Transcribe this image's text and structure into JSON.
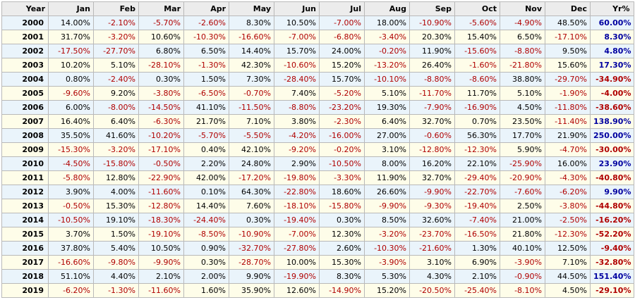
{
  "table": {
    "headers": [
      "Year",
      "Jan",
      "Feb",
      "Mar",
      "Apr",
      "May",
      "Jun",
      "Jul",
      "Aug",
      "Sep",
      "Oct",
      "Nov",
      "Dec",
      "Yr%"
    ],
    "rows": [
      {
        "year": "2000",
        "months": [
          "14.00%",
          "-2.10%",
          "-5.70%",
          "-2.60%",
          "8.30%",
          "10.50%",
          "-7.00%",
          "18.00%",
          "-10.90%",
          "-5.60%",
          "-4.90%",
          "48.50%"
        ],
        "total": "60.00%"
      },
      {
        "year": "2001",
        "months": [
          "31.70%",
          "-3.20%",
          "10.60%",
          "-10.30%",
          "-16.60%",
          "-7.00%",
          "-6.80%",
          "-3.40%",
          "20.30%",
          "15.40%",
          "6.50%",
          "-17.10%"
        ],
        "total": "8.30%"
      },
      {
        "year": "2002",
        "months": [
          "-17.50%",
          "-27.70%",
          "6.80%",
          "6.50%",
          "14.40%",
          "15.70%",
          "24.00%",
          "-0.20%",
          "11.90%",
          "-15.60%",
          "-8.80%",
          "9.50%"
        ],
        "total": "4.80%"
      },
      {
        "year": "2003",
        "months": [
          "10.20%",
          "5.10%",
          "-28.10%",
          "-1.30%",
          "42.30%",
          "-10.60%",
          "15.20%",
          "-13.20%",
          "26.40%",
          "-1.60%",
          "-21.80%",
          "15.60%"
        ],
        "total": "17.30%"
      },
      {
        "year": "2004",
        "months": [
          "0.80%",
          "-2.40%",
          "0.30%",
          "1.50%",
          "7.30%",
          "-28.40%",
          "15.70%",
          "-10.10%",
          "-8.80%",
          "-8.60%",
          "38.80%",
          "-29.70%"
        ],
        "total": "-34.90%"
      },
      {
        "year": "2005",
        "months": [
          "-9.60%",
          "9.20%",
          "-3.80%",
          "-6.50%",
          "-0.70%",
          "7.40%",
          "-5.20%",
          "5.10%",
          "-11.70%",
          "11.70%",
          "5.10%",
          "-1.90%"
        ],
        "total": "-4.00%"
      },
      {
        "year": "2006",
        "months": [
          "6.00%",
          "-8.00%",
          "-14.50%",
          "41.10%",
          "-11.50%",
          "-8.80%",
          "-23.20%",
          "19.30%",
          "-7.90%",
          "-16.90%",
          "4.50%",
          "-11.80%"
        ],
        "total": "-38.60%"
      },
      {
        "year": "2007",
        "months": [
          "16.40%",
          "6.40%",
          "-6.30%",
          "21.70%",
          "7.10%",
          "3.80%",
          "-2.30%",
          "6.40%",
          "32.70%",
          "0.70%",
          "23.50%",
          "-11.40%"
        ],
        "total": "138.90%"
      },
      {
        "year": "2008",
        "months": [
          "35.50%",
          "41.60%",
          "-10.20%",
          "-5.70%",
          "-5.50%",
          "-4.20%",
          "-16.00%",
          "27.00%",
          "-0.60%",
          "56.30%",
          "17.70%",
          "21.90%"
        ],
        "total": "250.00%"
      },
      {
        "year": "2009",
        "months": [
          "-15.30%",
          "-3.20%",
          "-17.10%",
          "0.40%",
          "42.10%",
          "-9.20%",
          "-0.20%",
          "3.10%",
          "-12.80%",
          "-12.30%",
          "5.90%",
          "-4.70%"
        ],
        "total": "-30.00%"
      },
      {
        "year": "2010",
        "months": [
          "-4.50%",
          "-15.80%",
          "-0.50%",
          "2.20%",
          "24.80%",
          "2.90%",
          "-10.50%",
          "8.00%",
          "16.20%",
          "22.10%",
          "-25.90%",
          "16.00%"
        ],
        "total": "23.90%"
      },
      {
        "year": "2011",
        "months": [
          "-5.80%",
          "12.80%",
          "-22.90%",
          "42.00%",
          "-17.20%",
          "-19.80%",
          "-3.30%",
          "11.90%",
          "32.70%",
          "-29.40%",
          "-20.90%",
          "-4.30%"
        ],
        "total": "-40.80%"
      },
      {
        "year": "2012",
        "months": [
          "3.90%",
          "4.00%",
          "-11.60%",
          "0.10%",
          "64.30%",
          "-22.80%",
          "18.60%",
          "26.60%",
          "-9.90%",
          "-22.70%",
          "-7.60%",
          "-6.20%"
        ],
        "total": "9.90%"
      },
      {
        "year": "2013",
        "months": [
          "-0.50%",
          "15.30%",
          "-12.80%",
          "14.40%",
          "7.60%",
          "-18.10%",
          "-15.80%",
          "-9.90%",
          "-9.30%",
          "-19.40%",
          "2.50%",
          "-3.80%"
        ],
        "total": "-44.80%"
      },
      {
        "year": "2014",
        "months": [
          "-10.50%",
          "19.10%",
          "-18.30%",
          "-24.40%",
          "0.30%",
          "-19.40%",
          "0.30%",
          "8.50%",
          "32.60%",
          "-7.40%",
          "21.00%",
          "-2.50%"
        ],
        "total": "-16.20%"
      },
      {
        "year": "2015",
        "months": [
          "3.70%",
          "1.50%",
          "-19.10%",
          "-8.50%",
          "-10.90%",
          "-7.00%",
          "12.30%",
          "-3.20%",
          "-23.70%",
          "-16.50%",
          "21.80%",
          "-12.30%"
        ],
        "total": "-52.20%"
      },
      {
        "year": "2016",
        "months": [
          "37.80%",
          "5.40%",
          "10.50%",
          "0.90%",
          "-32.70%",
          "-27.80%",
          "2.60%",
          "-10.30%",
          "-21.60%",
          "1.30%",
          "40.10%",
          "12.50%"
        ],
        "total": "-9.40%"
      },
      {
        "year": "2017",
        "months": [
          "-16.60%",
          "-9.80%",
          "-9.90%",
          "0.30%",
          "-28.70%",
          "10.00%",
          "15.30%",
          "-3.90%",
          "3.10%",
          "6.90%",
          "-3.90%",
          "7.10%"
        ],
        "total": "-32.80%"
      },
      {
        "year": "2018",
        "months": [
          "51.10%",
          "4.40%",
          "2.10%",
          "2.00%",
          "9.90%",
          "-19.90%",
          "8.30%",
          "5.30%",
          "4.30%",
          "2.10%",
          "-0.90%",
          "44.50%"
        ],
        "total": "151.40%"
      },
      {
        "year": "2019",
        "months": [
          "-6.20%",
          "-1.30%",
          "-11.60%",
          "1.60%",
          "35.90%",
          "12.60%",
          "-14.90%",
          "15.20%",
          "-20.50%",
          "-25.40%",
          "-8.10%",
          "4.50%"
        ],
        "total": "-29.10%"
      }
    ]
  },
  "colors": {
    "header_bg": "#ececec",
    "row_odd_bg": "#eaf4fb",
    "row_even_bg": "#fefde9",
    "negative_text": "#b00000",
    "positive_total_text": "#0000a0",
    "border": "#b9b9b9"
  }
}
